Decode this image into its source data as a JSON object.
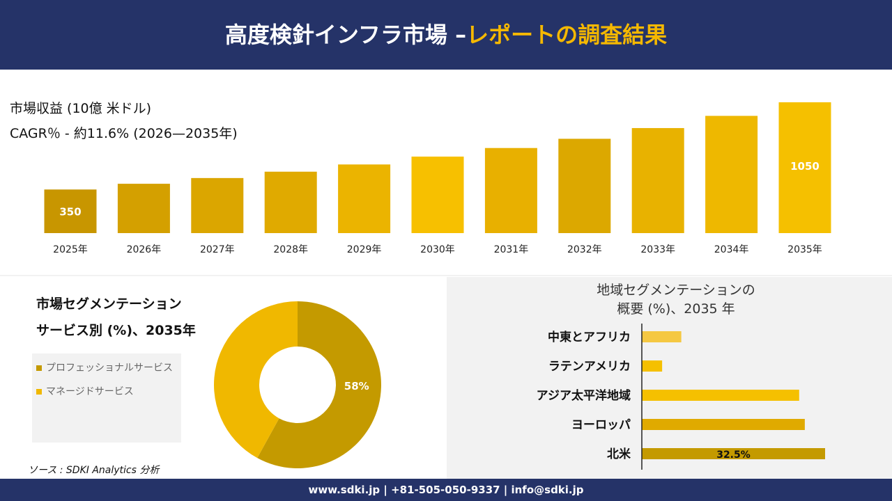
{
  "header": {
    "title_main": "高度検針インフラ市場 –",
    "title_highlight": "レポートの調査結果"
  },
  "chart_data": [
    {
      "type": "bar",
      "title": "市場収益 (10億 米ドル)",
      "subtitle": "CAGR％ - 約11.6% (2026—2035年)",
      "categories": [
        "2025年",
        "2026年",
        "2027年",
        "2028年",
        "2029年",
        "2030年",
        "2031年",
        "2032年",
        "2033年",
        "2034年",
        "2035年"
      ],
      "values": [
        350,
        396,
        442,
        493,
        551,
        614,
        683,
        757,
        843,
        941,
        1050
      ],
      "value_labels": [
        "350",
        null,
        null,
        null,
        null,
        null,
        null,
        null,
        null,
        null,
        "1050"
      ],
      "colors": [
        "#c89600",
        "#d4a000",
        "#dba600",
        "#e0aa00",
        "#ebb400",
        "#f7c000",
        "#e8b000",
        "#dca800",
        "#e8b200",
        "#eeb800",
        "#f5c000"
      ]
    },
    {
      "type": "donut",
      "title": [
        "市場セグメンテーション",
        "サービス別 (%)、2035年"
      ],
      "categories": [
        "プロフェッショナルサービス",
        "マネージドサービス"
      ],
      "values": [
        58,
        42
      ],
      "value_labels": [
        "58%",
        null
      ],
      "colors": [
        "#c49a00",
        "#f0b800"
      ]
    },
    {
      "type": "hbar",
      "title": [
        "地域セグメンテーションの",
        "概要 (%)、2035 年"
      ],
      "categories": [
        "中東とアフリカ",
        "ラテンアメリカ",
        "アジア太平洋地域",
        "ヨーロッパ",
        "北米"
      ],
      "values": [
        7.0,
        3.6,
        27.9,
        28.9,
        32.5
      ],
      "value_labels": [
        null,
        null,
        null,
        null,
        "32.5%"
      ],
      "colors": [
        "#f5c842",
        "#f5c000",
        "#f5c000",
        "#e0aa00",
        "#c49a00"
      ]
    }
  ],
  "source": "ソース : SDKI Analytics 分析",
  "footer": "www.sdki.jp | +81-505-050-9337 | info@sdki.jp"
}
